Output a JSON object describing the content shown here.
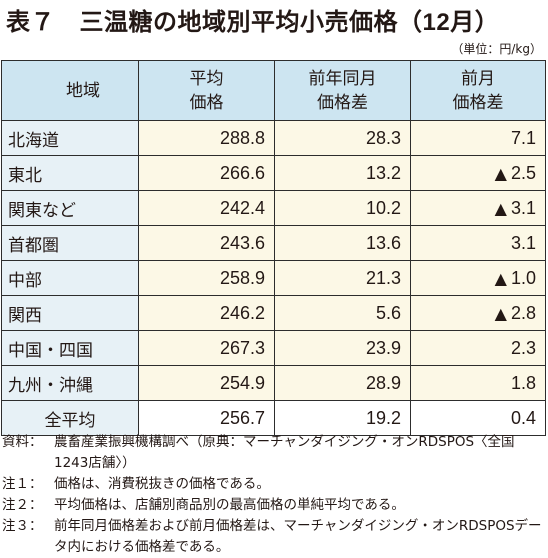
{
  "title": {
    "prefix": "表７　三温糖の地域別平均小売価格（",
    "month": "12月",
    "suffix": "）"
  },
  "unit": "（単位：円/kg）",
  "table": {
    "headers": {
      "region": "地域",
      "avg_price_line1": "平均",
      "avg_price_line2": "価格",
      "yoy_line1": "前年同月",
      "yoy_line2": "価格差",
      "mom_line1": "前月",
      "mom_line2": "価格差"
    },
    "rows": [
      {
        "region": "北海道",
        "avg": "288.8",
        "yoy": "28.3",
        "mom_marker": "",
        "mom": "7.1"
      },
      {
        "region": "東北",
        "avg": "266.6",
        "yoy": "13.2",
        "mom_marker": "▲",
        "mom": "2.5"
      },
      {
        "region": "関東など",
        "avg": "242.4",
        "yoy": "10.2",
        "mom_marker": "▲",
        "mom": "3.1"
      },
      {
        "region": "首都圏",
        "avg": "243.6",
        "yoy": "13.6",
        "mom_marker": "",
        "mom": "3.1"
      },
      {
        "region": "中部",
        "avg": "258.9",
        "yoy": "21.3",
        "mom_marker": "▲",
        "mom": "1.0"
      },
      {
        "region": "関西",
        "avg": "246.2",
        "yoy": "5.6",
        "mom_marker": "▲",
        "mom": "2.8"
      },
      {
        "region": "中国・四国",
        "avg": "267.3",
        "yoy": "23.9",
        "mom_marker": "",
        "mom": "2.3"
      },
      {
        "region": "九州・沖縄",
        "avg": "254.9",
        "yoy": "28.9",
        "mom_marker": "",
        "mom": "1.8"
      }
    ],
    "total": {
      "region": "全平均",
      "avg": "256.7",
      "yoy": "19.2",
      "mom_marker": "",
      "mom": "0.4"
    }
  },
  "notes": {
    "source_label": "資料：",
    "source_text": "農畜産業振興機構調べ（原典：マーチャンダイジング・オンRDSPOS〈全国1243店舗〉）",
    "note1_label": "注１：",
    "note1_text": "価格は、消費税抜きの価格である。",
    "note2_label": "注２：",
    "note2_text": "平均価格は、店舗別商品別の最高価格の単純平均である。",
    "note3_label": "注３：",
    "note3_text": "前年同月価格差および前月価格差は、マーチャンダイジング・オンRDSPOSデータ内における価格差である。"
  }
}
